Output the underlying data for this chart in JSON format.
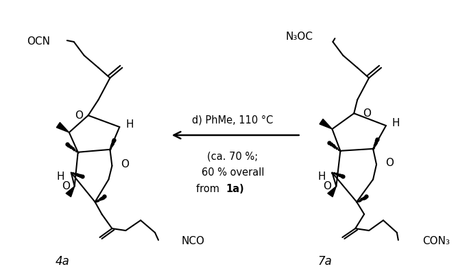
{
  "bg_color": "#ffffff",
  "fig_width": 6.68,
  "fig_height": 3.95,
  "arrow_label": "d) PhMe, 110 °C",
  "label_4a": "4a",
  "label_7a": "7a",
  "lw": 1.5
}
